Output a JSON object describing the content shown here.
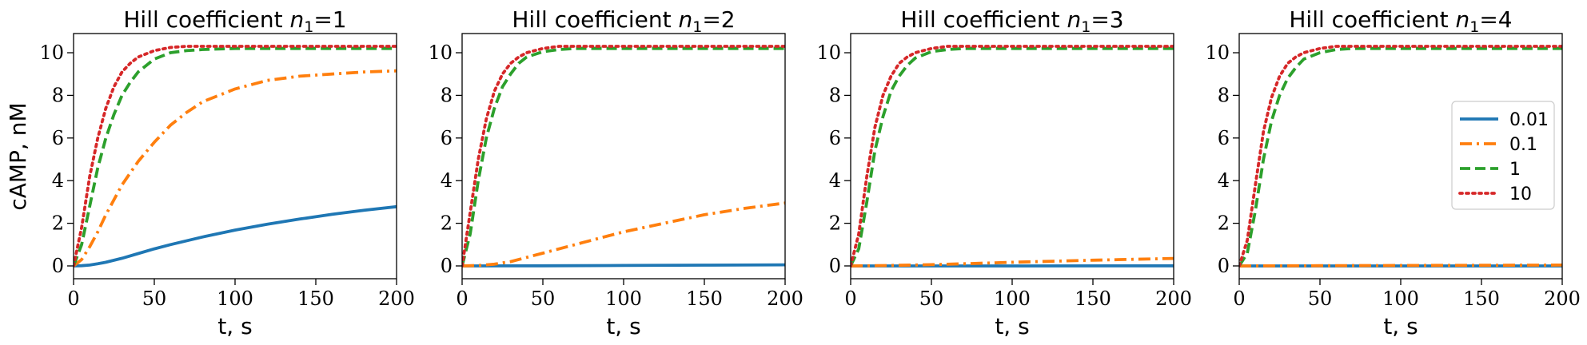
{
  "chart_data": {
    "type": "line",
    "ylabel": "cAMP, nM",
    "legend": {
      "placement": "center-right",
      "panel": 4
    },
    "series_styles": [
      {
        "name": "0.01",
        "color": "#1f77b4",
        "dash": "solid"
      },
      {
        "name": "0.1",
        "color": "#ff7f0e",
        "dash": "dashdot"
      },
      {
        "name": "1",
        "color": "#2ca02c",
        "dash": "dashed"
      },
      {
        "name": "10",
        "color": "#d62728",
        "dash": "dotted"
      }
    ],
    "panels": [
      {
        "title_prefix": "Hill coefficient ",
        "title_var": "n",
        "title_sub": "1",
        "title_suffix": "=1",
        "xlabel": "t, s",
        "xlim": [
          0,
          200
        ],
        "ylim": [
          -0.6,
          10.9
        ],
        "xticks": [
          0,
          50,
          100,
          150,
          200
        ],
        "yticks": [
          0,
          2,
          4,
          6,
          8,
          10
        ],
        "series": [
          {
            "name": "0.01",
            "x": [
              0,
              5,
              10,
              15,
              20,
              30,
              40,
              50,
              60,
              80,
              100,
              120,
              140,
              160,
              180,
              200
            ],
            "y": [
              0,
              0.01,
              0.04,
              0.1,
              0.17,
              0.36,
              0.58,
              0.8,
              1.0,
              1.36,
              1.68,
              1.96,
              2.2,
              2.42,
              2.61,
              2.78
            ]
          },
          {
            "name": "0.1",
            "x": [
              0,
              5,
              10,
              15,
              20,
              25,
              30,
              40,
              50,
              60,
              70,
              80,
              90,
              100,
              120,
              140,
              160,
              180,
              200
            ],
            "y": [
              0,
              0.3,
              0.9,
              1.6,
              2.4,
              3.1,
              3.8,
              4.9,
              5.8,
              6.6,
              7.2,
              7.7,
              8.0,
              8.3,
              8.7,
              8.9,
              9.0,
              9.1,
              9.15
            ]
          },
          {
            "name": "1",
            "x": [
              0,
              5,
              10,
              15,
              20,
              25,
              30,
              35,
              40,
              50,
              60,
              70,
              80,
              100,
              120,
              150,
              200
            ],
            "y": [
              0,
              1.0,
              2.8,
              4.6,
              6.0,
              7.1,
              8.0,
              8.6,
              9.1,
              9.7,
              10.0,
              10.1,
              10.15,
              10.2,
              10.2,
              10.2,
              10.2
            ]
          },
          {
            "name": "10",
            "x": [
              0,
              5,
              10,
              15,
              20,
              25,
              30,
              35,
              40,
              50,
              60,
              70,
              100,
              150,
              200
            ],
            "y": [
              0,
              1.8,
              4.2,
              6.0,
              7.4,
              8.4,
              9.1,
              9.5,
              9.8,
              10.1,
              10.25,
              10.3,
              10.3,
              10.3,
              10.3
            ]
          }
        ]
      },
      {
        "title_prefix": "Hill coefficient ",
        "title_var": "n",
        "title_sub": "1",
        "title_suffix": "=2",
        "xlabel": "t, s",
        "xlim": [
          0,
          200
        ],
        "ylim": [
          -0.6,
          10.9
        ],
        "xticks": [
          0,
          50,
          100,
          150,
          200
        ],
        "yticks": [
          0,
          2,
          4,
          6,
          8,
          10
        ],
        "series": [
          {
            "name": "0.01",
            "x": [
              0,
              50,
              100,
              150,
              200
            ],
            "y": [
              0,
              0.005,
              0.02,
              0.035,
              0.05
            ]
          },
          {
            "name": "0.1",
            "x": [
              0,
              10,
              20,
              30,
              50,
              75,
              100,
              125,
              150,
              175,
              200
            ],
            "y": [
              0,
              0.02,
              0.08,
              0.2,
              0.6,
              1.1,
              1.6,
              2.0,
              2.4,
              2.7,
              2.95
            ]
          },
          {
            "name": "1",
            "x": [
              0,
              5,
              10,
              15,
              20,
              25,
              30,
              35,
              40,
              50,
              60,
              70,
              80,
              100,
              150,
              200
            ],
            "y": [
              0,
              1.5,
              4.0,
              6.0,
              7.4,
              8.4,
              9.0,
              9.5,
              9.8,
              10.05,
              10.15,
              10.2,
              10.2,
              10.2,
              10.2,
              10.2
            ]
          },
          {
            "name": "10",
            "x": [
              0,
              5,
              10,
              15,
              20,
              25,
              30,
              35,
              40,
              50,
              60,
              100,
              150,
              200
            ],
            "y": [
              0,
              2.5,
              5.0,
              6.9,
              8.2,
              9.0,
              9.5,
              9.8,
              10.0,
              10.2,
              10.3,
              10.3,
              10.3,
              10.3
            ]
          }
        ]
      },
      {
        "title_prefix": "Hill coefficient ",
        "title_var": "n",
        "title_sub": "1",
        "title_suffix": "=3",
        "xlabel": "t, s",
        "xlim": [
          0,
          200
        ],
        "ylim": [
          -0.6,
          10.9
        ],
        "xticks": [
          0,
          50,
          100,
          150,
          200
        ],
        "yticks": [
          0,
          2,
          4,
          6,
          8,
          10
        ],
        "series": [
          {
            "name": "0.01",
            "x": [
              0,
              100,
              200
            ],
            "y": [
              0,
              0,
              0.005
            ]
          },
          {
            "name": "0.1",
            "x": [
              0,
              25,
              50,
              75,
              100,
              125,
              150,
              175,
              200
            ],
            "y": [
              0,
              0.02,
              0.06,
              0.11,
              0.17,
              0.22,
              0.27,
              0.31,
              0.35
            ]
          },
          {
            "name": "1",
            "x": [
              0,
              5,
              10,
              15,
              20,
              25,
              30,
              35,
              40,
              50,
              60,
              70,
              80,
              100,
              150,
              200
            ],
            "y": [
              0,
              0.8,
              3.0,
              5.4,
              7.0,
              8.2,
              8.9,
              9.4,
              9.75,
              10.05,
              10.15,
              10.2,
              10.2,
              10.2,
              10.2,
              10.2
            ]
          },
          {
            "name": "10",
            "x": [
              0,
              5,
              10,
              15,
              20,
              25,
              30,
              35,
              40,
              50,
              60,
              100,
              150,
              200
            ],
            "y": [
              0,
              1.5,
              4.2,
              6.5,
              8.0,
              8.9,
              9.5,
              9.8,
              10.0,
              10.2,
              10.3,
              10.3,
              10.3,
              10.3
            ]
          }
        ]
      },
      {
        "title_prefix": "Hill coefficient ",
        "title_var": "n",
        "title_sub": "1",
        "title_suffix": "=4",
        "xlabel": "t, s",
        "xlim": [
          0,
          200
        ],
        "ylim": [
          -0.6,
          10.9
        ],
        "xticks": [
          0,
          50,
          100,
          150,
          200
        ],
        "yticks": [
          0,
          2,
          4,
          6,
          8,
          10
        ],
        "series": [
          {
            "name": "0.01",
            "x": [
              0,
              100,
              200
            ],
            "y": [
              0,
              0,
              0
            ]
          },
          {
            "name": "0.1",
            "x": [
              0,
              50,
              100,
              150,
              200
            ],
            "y": [
              0,
              0.01,
              0.02,
              0.03,
              0.04
            ]
          },
          {
            "name": "1",
            "x": [
              0,
              5,
              10,
              15,
              20,
              25,
              30,
              35,
              40,
              50,
              60,
              70,
              80,
              100,
              150,
              200
            ],
            "y": [
              0,
              0.6,
              2.6,
              5.0,
              6.8,
              8.0,
              8.8,
              9.3,
              9.7,
              10.0,
              10.15,
              10.2,
              10.2,
              10.2,
              10.2,
              10.2
            ]
          },
          {
            "name": "10",
            "x": [
              0,
              5,
              10,
              15,
              20,
              25,
              30,
              35,
              40,
              50,
              60,
              100,
              150,
              200
            ],
            "y": [
              0,
              1.2,
              3.8,
              6.3,
              7.9,
              8.9,
              9.5,
              9.8,
              10.0,
              10.2,
              10.3,
              10.3,
              10.3,
              10.3
            ]
          }
        ]
      }
    ]
  }
}
